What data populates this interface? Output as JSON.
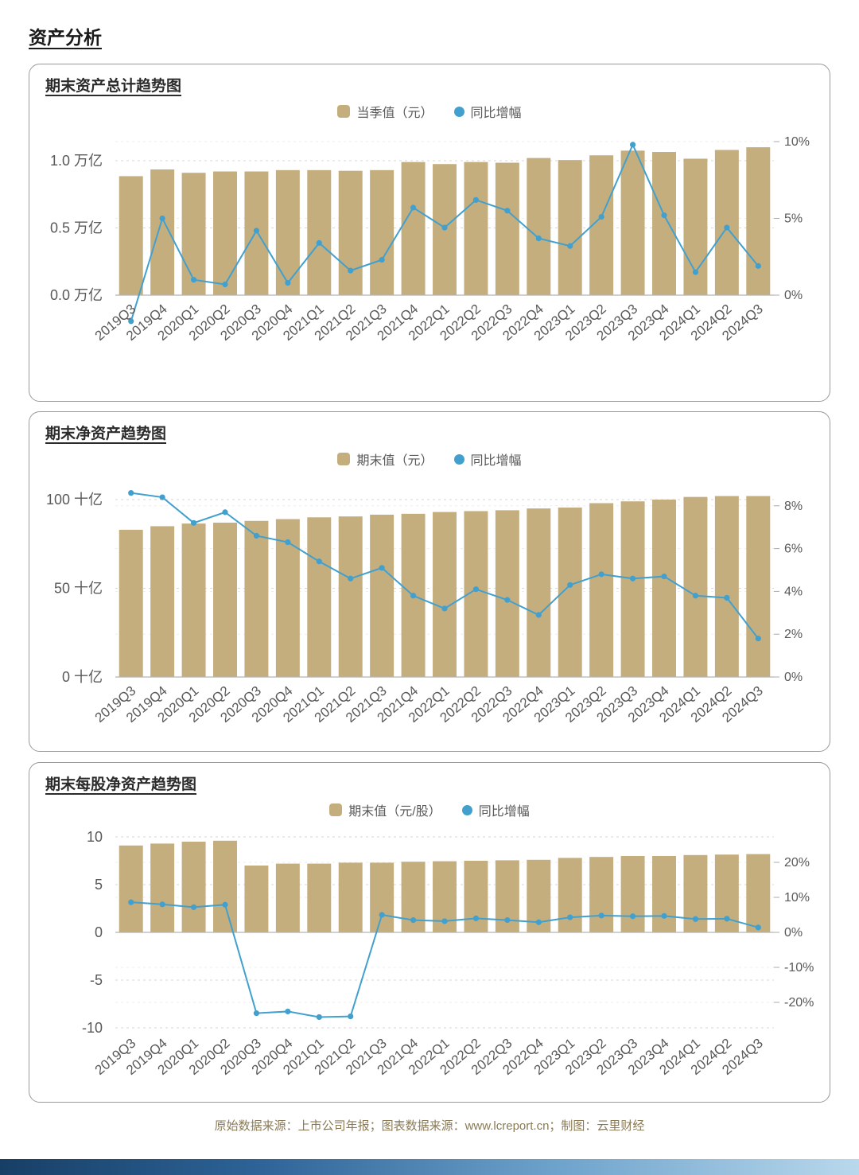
{
  "page": {
    "title": "资产分析",
    "footer": "原始数据来源：上市公司年报；图表数据来源：www.lcreport.cn；制图：云里财经"
  },
  "colors": {
    "bar": "#C5AE7E",
    "line": "#42A0CE"
  },
  "chart_data": [
    {
      "type": "bar",
      "title": "期末资产总计趋势图",
      "legend": [
        "当季值（元）",
        "同比增幅"
      ],
      "categories": [
        "2019Q3",
        "2019Q4",
        "2020Q1",
        "2020Q2",
        "2020Q3",
        "2020Q4",
        "2021Q1",
        "2021Q2",
        "2021Q3",
        "2021Q4",
        "2022Q1",
        "2022Q2",
        "2022Q3",
        "2022Q4",
        "2023Q1",
        "2023Q2",
        "2023Q3",
        "2023Q4",
        "2024Q1",
        "2024Q2",
        "2024Q3"
      ],
      "series": [
        {
          "name": "当季值（元）",
          "type": "bar",
          "axis": "left",
          "unit": "万亿",
          "values": [
            0.885,
            0.935,
            0.91,
            0.92,
            0.92,
            0.93,
            0.93,
            0.925,
            0.93,
            0.99,
            0.975,
            0.99,
            0.985,
            1.02,
            1.005,
            1.04,
            1.075,
            1.065,
            1.015,
            1.08,
            1.1
          ]
        },
        {
          "name": "同比增幅",
          "type": "line",
          "axis": "right",
          "unit": "%",
          "values": [
            -1.7,
            5.0,
            1.0,
            0.7,
            4.2,
            0.8,
            3.4,
            1.6,
            2.3,
            5.7,
            4.4,
            6.2,
            5.5,
            3.7,
            3.2,
            5.1,
            9.8,
            5.2,
            1.5,
            4.4,
            1.9
          ]
        }
      ],
      "left_axis": {
        "range": [
          0,
          1.2
        ],
        "ticks": [
          {
            "v": 0,
            "label": "0.0 万亿"
          },
          {
            "v": 0.5,
            "label": "0.5 万亿"
          },
          {
            "v": 1,
            "label": "1.0 万亿"
          }
        ]
      },
      "right_axis": {
        "range": [
          -2,
          10.5
        ],
        "ticks": [
          {
            "v": 0,
            "label": "0%"
          },
          {
            "v": 5,
            "label": "5%"
          },
          {
            "v": 10,
            "label": "10%"
          }
        ]
      }
    },
    {
      "type": "bar",
      "title": "期末净资产趋势图",
      "legend": [
        "期末值（元）",
        "同比增幅"
      ],
      "categories": [
        "2019Q3",
        "2019Q4",
        "2020Q1",
        "2020Q2",
        "2020Q3",
        "2020Q4",
        "2021Q1",
        "2021Q2",
        "2021Q3",
        "2021Q4",
        "2022Q1",
        "2022Q2",
        "2022Q3",
        "2022Q4",
        "2023Q1",
        "2023Q2",
        "2023Q3",
        "2023Q4",
        "2024Q1",
        "2024Q2",
        "2024Q3"
      ],
      "series": [
        {
          "name": "期末值（元）",
          "type": "bar",
          "axis": "left",
          "unit": "十亿",
          "values": [
            83,
            85,
            86.5,
            87,
            88,
            89,
            90,
            90.5,
            91.5,
            92,
            93,
            93.5,
            94,
            95,
            95.5,
            98,
            99,
            100,
            101.5,
            102,
            102
          ]
        },
        {
          "name": "同比增幅",
          "type": "line",
          "axis": "right",
          "unit": "%",
          "values": [
            8.6,
            8.4,
            7.2,
            7.7,
            6.6,
            6.3,
            5.4,
            4.6,
            5.1,
            3.8,
            3.2,
            4.1,
            3.6,
            2.9,
            4.3,
            4.8,
            4.6,
            4.7,
            3.8,
            3.7,
            1.8
          ]
        }
      ],
      "left_axis": {
        "range": [
          0,
          107
        ],
        "ticks": [
          {
            "v": 0,
            "label": "0 十亿"
          },
          {
            "v": 50,
            "label": "50 十亿"
          },
          {
            "v": 100,
            "label": "100 十亿"
          }
        ]
      },
      "right_axis": {
        "range": [
          0,
          8.8
        ],
        "ticks": [
          {
            "v": 0,
            "label": "0%"
          },
          {
            "v": 2,
            "label": "2%"
          },
          {
            "v": 4,
            "label": "4%"
          },
          {
            "v": 6,
            "label": "6%"
          },
          {
            "v": 8,
            "label": "8%"
          }
        ]
      }
    },
    {
      "type": "bar",
      "title": "期末每股净资产趋势图",
      "legend": [
        "期末值（元/股）",
        "同比增幅"
      ],
      "categories": [
        "2019Q3",
        "2019Q4",
        "2020Q1",
        "2020Q2",
        "2020Q3",
        "2020Q4",
        "2021Q1",
        "2021Q2",
        "2021Q3",
        "2021Q4",
        "2022Q1",
        "2022Q2",
        "2022Q3",
        "2022Q4",
        "2023Q1",
        "2023Q2",
        "2023Q3",
        "2023Q4",
        "2024Q1",
        "2024Q2",
        "2024Q3"
      ],
      "series": [
        {
          "name": "期末值（元/股）",
          "type": "bar",
          "axis": "left",
          "unit": "元/股",
          "values": [
            9.1,
            9.3,
            9.5,
            9.6,
            7.0,
            7.2,
            7.2,
            7.3,
            7.3,
            7.4,
            7.45,
            7.5,
            7.55,
            7.6,
            7.8,
            7.9,
            8.0,
            8.0,
            8.1,
            8.15,
            8.2
          ]
        },
        {
          "name": "同比增幅",
          "type": "line",
          "axis": "right",
          "unit": "%",
          "values": [
            8.6,
            8.0,
            7.2,
            7.9,
            -23.1,
            -22.6,
            -24.2,
            -24.0,
            5.0,
            3.5,
            3.2,
            4.0,
            3.5,
            2.9,
            4.3,
            4.8,
            4.6,
            4.7,
            3.8,
            3.9,
            1.4
          ]
        }
      ],
      "left_axis": {
        "range": [
          -10.8,
          10.8
        ],
        "ticks": [
          {
            "v": -10,
            "label": "-10"
          },
          {
            "v": -5,
            "label": "-5"
          },
          {
            "v": 0,
            "label": "0"
          },
          {
            "v": 5,
            "label": "5"
          },
          {
            "v": 10,
            "label": "10"
          }
        ]
      },
      "right_axis": {
        "range": [
          -27,
          29
        ],
        "ticks": [
          {
            "v": -20,
            "label": "-20%"
          },
          {
            "v": -10,
            "label": "-10%"
          },
          {
            "v": 0,
            "label": "0%"
          },
          {
            "v": 10,
            "label": "10%"
          },
          {
            "v": 20,
            "label": "20%"
          }
        ]
      }
    }
  ]
}
